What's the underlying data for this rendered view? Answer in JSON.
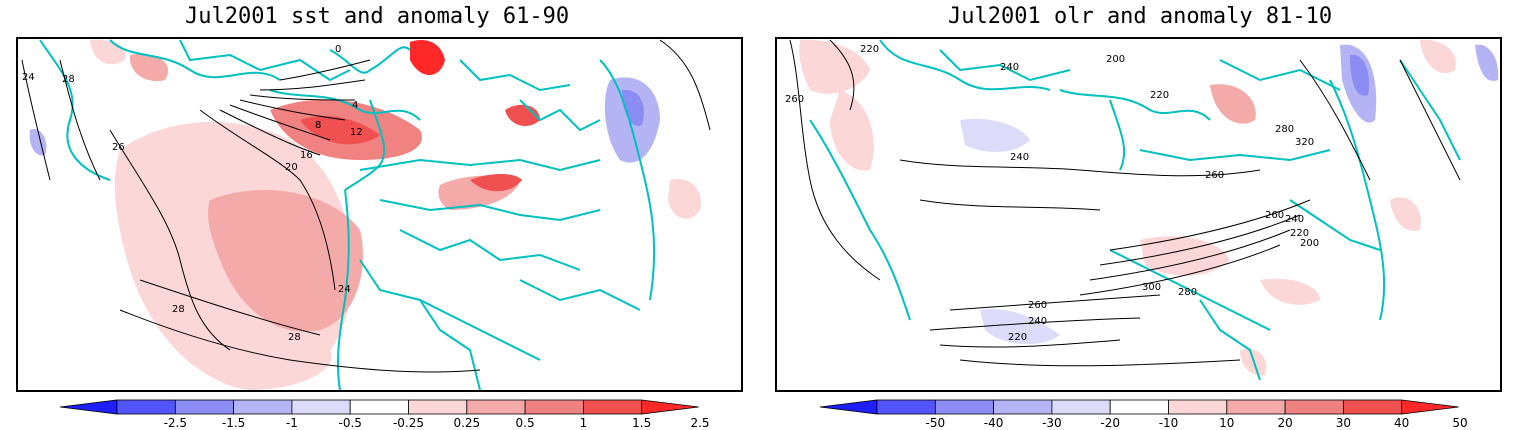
{
  "panels": [
    {
      "title": "Jul2001 sst and anomaly 61-90",
      "colorbar": {
        "ticks": [
          "-2.5",
          "-1.5",
          "-1",
          "-0.5",
          "-0.25",
          "0.25",
          "0.5",
          "1",
          "1.5",
          "2.5"
        ],
        "colors": [
          "#1e1eff",
          "#5555ff",
          "#8c8cf5",
          "#b4b4f5",
          "#dcdcfa",
          "#ffffff",
          "#fbd7d7",
          "#f5aaaa",
          "#f08282",
          "#f05050",
          "#ff2828"
        ]
      },
      "contour_labels": [
        "24",
        "28",
        "26",
        "20",
        "16",
        "12",
        "8",
        "4",
        "0",
        "24",
        "28",
        "28"
      ]
    },
    {
      "title": "Jul2001 olr and anomaly 81-10",
      "colorbar": {
        "ticks": [
          "-50",
          "-40",
          "-30",
          "-20",
          "-10",
          "10",
          "20",
          "30",
          "40",
          "50"
        ],
        "colors": [
          "#1e1eff",
          "#5555ff",
          "#8c8cf5",
          "#b4b4f5",
          "#dcdcfa",
          "#ffffff",
          "#fbd7d7",
          "#f5aaaa",
          "#f08282",
          "#f05050",
          "#ff2828"
        ]
      },
      "contour_labels": [
        "220",
        "240",
        "260",
        "200",
        "220",
        "240",
        "260",
        "280",
        "320",
        "260",
        "240",
        "220",
        "200",
        "300",
        "280",
        "260",
        "240",
        "220"
      ]
    }
  ],
  "colors": {
    "coastline": "#00c0c0",
    "contour": "#000000",
    "frame": "#000000"
  }
}
